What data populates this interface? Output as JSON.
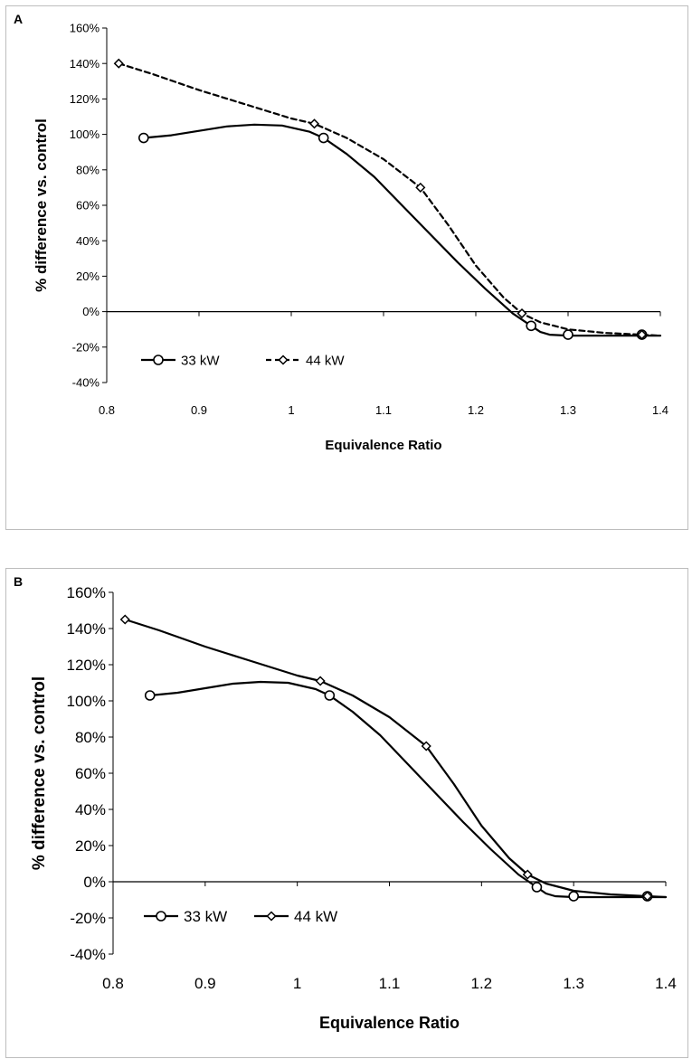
{
  "chart_data": [
    {
      "type": "line",
      "panel_label": "A",
      "xlabel": "Equivalence Ratio",
      "ylabel": "% difference vs. control",
      "xlim": [
        0.8,
        1.4
      ],
      "ylim": [
        -40,
        160
      ],
      "x_ticks": [
        0.8,
        0.9,
        1.0,
        1.1,
        1.2,
        1.3,
        1.4
      ],
      "x_tick_labels": [
        "0.8",
        "0.9",
        "1",
        "1.1",
        "1.2",
        "1.3",
        "1.4"
      ],
      "y_ticks": [
        -40,
        -20,
        0,
        20,
        40,
        60,
        80,
        100,
        120,
        140,
        160
      ],
      "y_tick_labels": [
        "-40%",
        "-20%",
        "0%",
        "20%",
        "40%",
        "60%",
        "80%",
        "100%",
        "120%",
        "140%",
        "160%"
      ],
      "legend_position": "bottom-left",
      "series": [
        {
          "name": "33 kW",
          "marker": "circle",
          "line_style": "solid",
          "x": [
            0.84,
            1.035,
            1.26,
            1.3,
            1.38
          ],
          "values": [
            98,
            98,
            -8,
            -13,
            -13
          ],
          "curve_x": [
            0.84,
            0.87,
            0.9,
            0.93,
            0.96,
            0.99,
            1.02,
            1.035,
            1.06,
            1.09,
            1.12,
            1.15,
            1.18,
            1.21,
            1.24,
            1.26,
            1.27,
            1.28,
            1.3,
            1.34,
            1.38,
            1.4
          ],
          "curve_y": [
            98,
            99.5,
            102,
            104.5,
            105.5,
            105,
            101.5,
            98,
            89,
            76,
            60,
            44,
            28,
            13,
            -1,
            -8,
            -11.5,
            -13,
            -13.5,
            -13.5,
            -13.5,
            -13.5
          ]
        },
        {
          "name": "44 kW",
          "marker": "diamond",
          "line_style": "dashed",
          "x": [
            0.813,
            1.025,
            1.14,
            1.25,
            1.38
          ],
          "values": [
            140,
            106,
            70,
            -1,
            -13
          ],
          "curve_x": [
            0.813,
            0.85,
            0.9,
            0.95,
            1.0,
            1.025,
            1.06,
            1.1,
            1.14,
            1.17,
            1.2,
            1.23,
            1.25,
            1.27,
            1.3,
            1.34,
            1.38,
            1.4
          ],
          "curve_y": [
            140,
            134,
            125,
            117,
            109,
            106,
            98,
            86,
            70,
            49,
            26,
            8,
            -1,
            -6,
            -10,
            -12,
            -13,
            -13.5
          ]
        }
      ]
    },
    {
      "type": "line",
      "panel_label": "B",
      "xlabel": "Equivalence Ratio",
      "ylabel": "% difference vs. control",
      "xlim": [
        0.8,
        1.4
      ],
      "ylim": [
        -40,
        160
      ],
      "x_ticks": [
        0.8,
        0.9,
        1.0,
        1.1,
        1.2,
        1.3,
        1.4
      ],
      "x_tick_labels": [
        "0.8",
        "0.9",
        "1",
        "1.1",
        "1.2",
        "1.3",
        "1.4"
      ],
      "y_ticks": [
        -40,
        -20,
        0,
        20,
        40,
        60,
        80,
        100,
        120,
        140,
        160
      ],
      "y_tick_labels": [
        "-40%",
        "-20%",
        "0%",
        "20%",
        "40%",
        "60%",
        "80%",
        "100%",
        "120%",
        "140%",
        "160%"
      ],
      "legend_position": "bottom-left",
      "series": [
        {
          "name": "33 kW",
          "marker": "circle",
          "line_style": "solid",
          "x": [
            0.84,
            1.035,
            1.26,
            1.3,
            1.38
          ],
          "values": [
            103,
            103,
            -3,
            -8,
            -8
          ],
          "curve_x": [
            0.84,
            0.87,
            0.9,
            0.93,
            0.96,
            0.99,
            1.02,
            1.035,
            1.06,
            1.09,
            1.12,
            1.15,
            1.18,
            1.21,
            1.24,
            1.26,
            1.27,
            1.28,
            1.3,
            1.34,
            1.38,
            1.4
          ],
          "curve_y": [
            103,
            104.5,
            107,
            109.5,
            110.5,
            110,
            106.5,
            103,
            94,
            81,
            65,
            49,
            33,
            18,
            4,
            -3,
            -6.5,
            -8,
            -8.5,
            -8.5,
            -8.5,
            -8.5
          ]
        },
        {
          "name": "44 kW",
          "marker": "diamond",
          "line_style": "solid",
          "x": [
            0.813,
            1.025,
            1.14,
            1.25,
            1.38
          ],
          "values": [
            145,
            111,
            75,
            4,
            -8
          ],
          "curve_x": [
            0.813,
            0.85,
            0.9,
            0.95,
            1.0,
            1.025,
            1.06,
            1.1,
            1.14,
            1.17,
            1.2,
            1.23,
            1.25,
            1.27,
            1.3,
            1.34,
            1.38,
            1.4
          ],
          "curve_y": [
            145,
            139,
            130,
            122,
            114,
            111,
            103,
            91,
            75,
            54,
            31,
            13,
            4,
            -1,
            -5,
            -7,
            -8,
            -8.5
          ]
        }
      ]
    }
  ]
}
